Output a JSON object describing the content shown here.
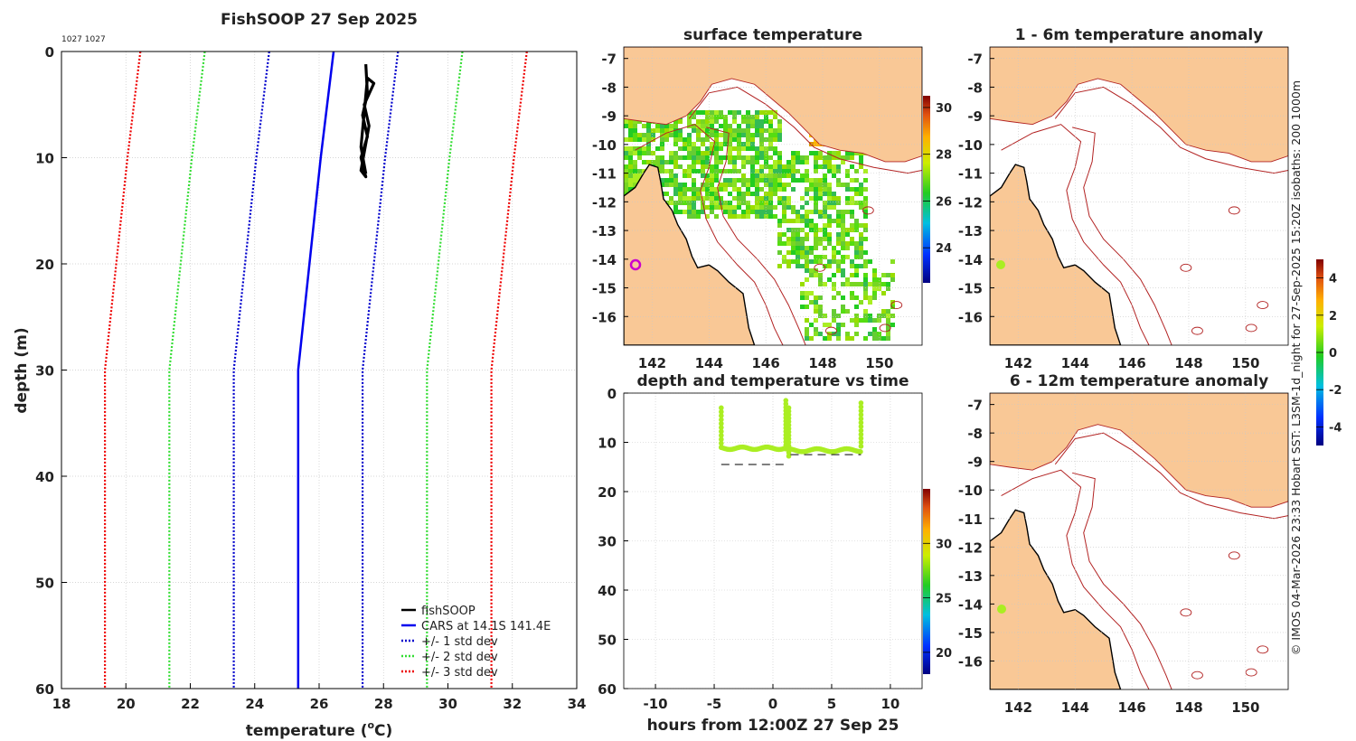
{
  "colors": {
    "land": "#f9c896",
    "coast": "#000000",
    "isobath": "#b22222",
    "cars": "#0000ee",
    "sd1": "#0000cc",
    "sd2": "#33dd33",
    "sd3": "#ee0000",
    "grid": "#c8c8c8",
    "fishsoop": "#000000",
    "marker_ring": "#cc00cc",
    "obs_dot": "#aaee22",
    "dashes": "#333333"
  },
  "profile": {
    "title": "FishSOOP 27 Sep 2025",
    "top_note": "1027 1027",
    "xlabel": "temperature (",
    "xlabel_sup": "o",
    "xlabel_end": "C)",
    "ylabel": "depth (m)",
    "xticks": [
      "18",
      "20",
      "22",
      "24",
      "26",
      "28",
      "30",
      "32",
      "34"
    ],
    "yticks": [
      "0",
      "10",
      "20",
      "30",
      "40",
      "50",
      "60"
    ],
    "legend": [
      "fishSOOP",
      "CARS at 14.1S 141.4E",
      "+/- 1 std dev",
      "+/- 2 std dev",
      "+/- 3 std dev"
    ]
  },
  "chart_data": [
    {
      "type": "line",
      "title": "FishSOOP 27 Sep 2025",
      "xlabel": "temperature (oC)",
      "ylabel": "depth (m)",
      "xlim": [
        18,
        34
      ],
      "ylim": [
        60,
        0
      ],
      "depths": [
        0,
        10,
        20,
        30,
        60
      ],
      "series": [
        {
          "name": "CARS at 14.1S 141.4E",
          "values": [
            26.45,
            26.05,
            25.7,
            25.35,
            25.35
          ]
        },
        {
          "name": "+1 std dev",
          "values": [
            28.45,
            28.05,
            27.7,
            27.35,
            27.35
          ]
        },
        {
          "name": "-1 std dev",
          "values": [
            24.45,
            24.05,
            23.7,
            23.35,
            23.35
          ]
        },
        {
          "name": "+2 std dev",
          "values": [
            30.45,
            30.05,
            29.7,
            29.35,
            29.35
          ]
        },
        {
          "name": "-2 std dev",
          "values": [
            22.45,
            22.05,
            21.7,
            21.35,
            21.35
          ]
        },
        {
          "name": "+3 std dev",
          "values": [
            32.45,
            32.05,
            31.7,
            31.35,
            31.35
          ]
        },
        {
          "name": "-3 std dev",
          "values": [
            20.45,
            20.05,
            19.7,
            19.35,
            19.35
          ]
        },
        {
          "name": "fishSOOP",
          "points": [
            [
              27.45,
              1.2
            ],
            [
              27.5,
              4
            ],
            [
              27.35,
              6
            ],
            [
              27.5,
              8
            ],
            [
              27.3,
              10
            ],
            [
              27.45,
              11.8
            ],
            [
              27.3,
              11.2
            ],
            [
              27.55,
              7
            ],
            [
              27.4,
              5
            ],
            [
              27.7,
              3
            ],
            [
              27.5,
              2.5
            ],
            [
              27.3,
              9
            ],
            [
              27.45,
              11.5
            ]
          ]
        }
      ]
    },
    {
      "type": "scatter",
      "title": "depth and temperature vs time",
      "xlabel": "hours from 12:00Z 27 Sep 25",
      "ylabel": "",
      "xlim": [
        -12.7,
        12.7
      ],
      "ylim": [
        60,
        0
      ],
      "xticks": [
        "-10",
        "-5",
        "0",
        "5",
        "10"
      ],
      "yticks": [
        "0",
        "10",
        "20",
        "30",
        "40",
        "50",
        "60"
      ],
      "colorbar_ticks": [
        "20",
        "25",
        "30"
      ],
      "colorbar_range": [
        18,
        35
      ],
      "segments": [
        {
          "time_start": -4.4,
          "time_end": 1.1,
          "depth": 11.2,
          "top": 3.0
        },
        {
          "time_start": 1.1,
          "time_end": 7.5,
          "depth": 11.6,
          "top": 1.5
        },
        {
          "time_start": 7.5,
          "time_end": 7.5,
          "depth": 11.6,
          "top": 2.0
        }
      ],
      "bottom_dashes": [
        {
          "from": -4.4,
          "to": 1.1,
          "depth": 14.5
        },
        {
          "from": 1.5,
          "to": 7.5,
          "depth": 12.5
        }
      ]
    },
    {
      "type": "heatmap",
      "title": "surface temperature",
      "xticks": [
        "142",
        "144",
        "146",
        "148",
        "150"
      ],
      "yticks": [
        "-7",
        "-8",
        "-9",
        "-10",
        "-11",
        "-12",
        "-13",
        "-14",
        "-15",
        "-16"
      ],
      "lon_range": [
        141,
        151.5
      ],
      "lat_range": [
        -17,
        -6.6
      ],
      "colorbar_ticks": [
        "24",
        "26",
        "28",
        "30"
      ],
      "colorbar_range": [
        22.5,
        30.5
      ]
    },
    {
      "type": "heatmap",
      "title": "1 - 6m temperature anomaly",
      "xticks": [
        "142",
        "144",
        "146",
        "148",
        "150"
      ],
      "yticks": [
        "-7",
        "-8",
        "-9",
        "-10",
        "-11",
        "-12",
        "-13",
        "-14",
        "-15",
        "-16"
      ],
      "colorbar_ticks": [
        "-4",
        "-2",
        "0",
        "2",
        "4"
      ],
      "colorbar_range": [
        -5,
        5
      ]
    },
    {
      "type": "heatmap",
      "title": "6 - 12m temperature anomaly",
      "xticks": [
        "142",
        "144",
        "146",
        "148",
        "150"
      ],
      "yticks": [
        "-7",
        "-8",
        "-9",
        "-10",
        "-11",
        "-12",
        "-13",
        "-14",
        "-15",
        "-16"
      ]
    }
  ],
  "side_note": "© IMOS 04-Mar-2026 23:33 Hobart SST: L3SM-1d_night for 27-Sep-2025 15:20Z isobaths: 200  1000m"
}
